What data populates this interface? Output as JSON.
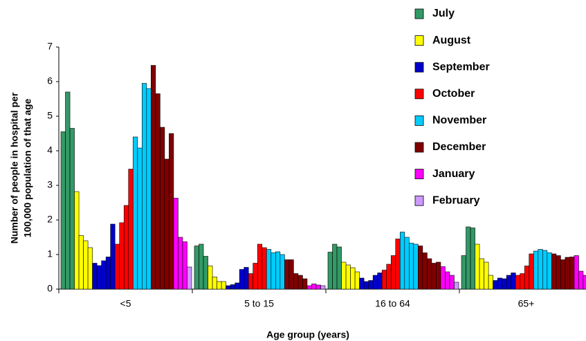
{
  "chart_data": {
    "type": "bar",
    "x_label": "Age group (years)",
    "y_label": [
      "Number of people in hospital per",
      "100,000 population of that age"
    ],
    "categories": [
      "<5",
      "5 to 15",
      "16 to 64",
      "65+"
    ],
    "ylim": [
      0,
      7
    ],
    "yticks": [
      0,
      1,
      2,
      3,
      4,
      5,
      6,
      7
    ],
    "series": [
      {
        "name": "July",
        "color": "#339966",
        "values": [
          [
            4.55,
            5.7,
            4.65
          ],
          [
            1.25,
            1.3,
            0.95
          ],
          [
            1.07,
            1.3,
            1.22
          ],
          [
            0.97,
            1.8,
            1.77
          ]
        ]
      },
      {
        "name": "August",
        "color": "#ffff00",
        "values": [
          [
            2.82,
            1.55,
            1.4,
            1.2
          ],
          [
            0.67,
            0.35,
            0.22,
            0.22
          ],
          [
            0.78,
            0.7,
            0.62,
            0.5
          ],
          [
            1.3,
            0.88,
            0.78,
            0.4
          ]
        ]
      },
      {
        "name": "September",
        "color": "#0000cc",
        "values": [
          [
            0.75,
            0.68,
            0.82,
            0.93,
            1.88
          ],
          [
            0.1,
            0.13,
            0.18,
            0.57,
            0.63
          ],
          [
            0.32,
            0.22,
            0.25,
            0.4,
            0.47
          ],
          [
            0.25,
            0.32,
            0.3,
            0.4,
            0.47
          ]
        ]
      },
      {
        "name": "October",
        "color": "#ff0000",
        "values": [
          [
            1.3,
            1.92,
            2.42,
            3.47
          ],
          [
            0.45,
            0.75,
            1.3,
            1.2
          ],
          [
            0.55,
            0.72,
            0.97,
            1.45
          ],
          [
            0.4,
            0.45,
            0.67,
            1.02
          ]
        ]
      },
      {
        "name": "November",
        "color": "#00ccff",
        "values": [
          [
            4.4,
            4.08,
            5.95,
            5.8
          ],
          [
            1.15,
            1.05,
            1.08,
            1.0
          ],
          [
            1.65,
            1.5,
            1.33,
            1.3
          ],
          [
            1.1,
            1.15,
            1.12,
            1.05
          ]
        ]
      },
      {
        "name": "December",
        "color": "#800000",
        "values": [
          [
            6.47,
            5.65,
            4.68,
            3.76,
            4.5
          ],
          [
            0.85,
            0.85,
            0.45,
            0.4,
            0.3
          ],
          [
            1.25,
            1.05,
            0.88,
            0.75,
            0.78
          ],
          [
            1.02,
            0.97,
            0.85,
            0.92,
            0.93
          ]
        ]
      },
      {
        "name": "January",
        "color": "#ff00ff",
        "values": [
          [
            2.63,
            1.5,
            1.37
          ],
          [
            0.1,
            0.15,
            0.12
          ],
          [
            0.65,
            0.5,
            0.4
          ],
          [
            0.97,
            0.52,
            0.4
          ]
        ]
      },
      {
        "name": "February",
        "color": "#cc99ff",
        "values": [
          [
            0.64
          ],
          [
            0.1
          ],
          [
            0.2
          ],
          [
            0.25
          ]
        ]
      }
    ]
  }
}
